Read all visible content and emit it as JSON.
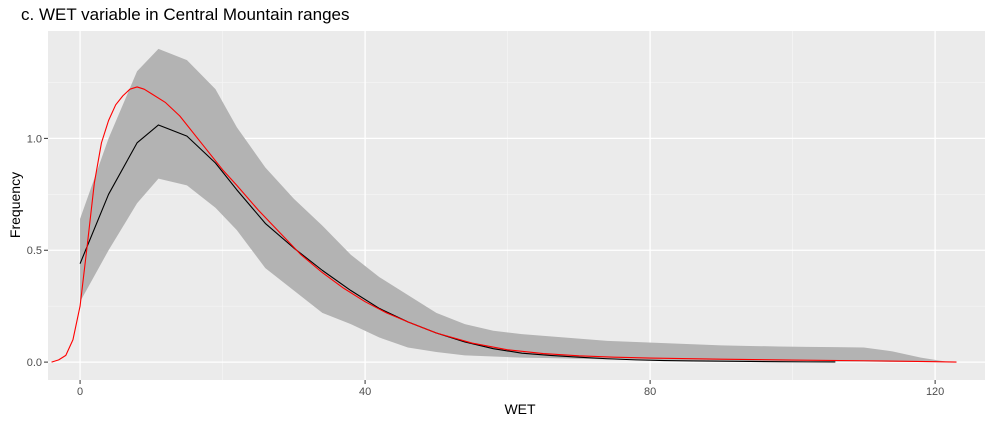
{
  "chart_data": {
    "type": "line",
    "title": "c. WET variable in Central Mountain ranges",
    "xlabel": "WET",
    "ylabel": "Frequency",
    "xlim": [
      -4.5,
      127
    ],
    "ylim": [
      -0.08,
      1.48
    ],
    "x_ticks": [
      0,
      40,
      80,
      120
    ],
    "x_tick_labels": [
      "0",
      "40",
      "80",
      "120"
    ],
    "y_ticks": [
      0.0,
      0.5,
      1.0
    ],
    "y_tick_labels": [
      "0.0",
      "0.5",
      "1.0"
    ],
    "x_minor": [
      20,
      60,
      100
    ],
    "y_minor": [
      0.25,
      0.75,
      1.25
    ],
    "grid": true,
    "background": "#ebebeb",
    "band": {
      "color": "#b3b3b3",
      "x": [
        0,
        4,
        8,
        11,
        15,
        19,
        22,
        26,
        30,
        34,
        38,
        42,
        46,
        50,
        54,
        58,
        62,
        66,
        70,
        74,
        78,
        82,
        86,
        90,
        94,
        98,
        102,
        106,
        110,
        114,
        118,
        122
      ],
      "upper": [
        0.64,
        1.0,
        1.3,
        1.4,
        1.35,
        1.22,
        1.05,
        0.87,
        0.73,
        0.61,
        0.48,
        0.38,
        0.3,
        0.22,
        0.17,
        0.14,
        0.125,
        0.115,
        0.105,
        0.095,
        0.09,
        0.085,
        0.08,
        0.075,
        0.072,
        0.07,
        0.068,
        0.067,
        0.065,
        0.048,
        0.02,
        0.0
      ],
      "lower": [
        0.27,
        0.5,
        0.71,
        0.82,
        0.79,
        0.69,
        0.59,
        0.42,
        0.32,
        0.22,
        0.17,
        0.11,
        0.065,
        0.045,
        0.03,
        0.025,
        0.02,
        0.018,
        0.015,
        0.012,
        0.01,
        0.008,
        0.007,
        0.006,
        0.005,
        0.004,
        0.003,
        0.002,
        0.002,
        0.001,
        0.0005,
        0.0
      ]
    },
    "series": [
      {
        "color": "#000000",
        "x": [
          0,
          4,
          8,
          11,
          15,
          19,
          22,
          26,
          30,
          34,
          38,
          42,
          46,
          50,
          54,
          58,
          62,
          66,
          70,
          74,
          78,
          82,
          86,
          90,
          94,
          98,
          102,
          106
        ],
        "values": [
          0.44,
          0.75,
          0.98,
          1.06,
          1.01,
          0.89,
          0.77,
          0.62,
          0.51,
          0.41,
          0.32,
          0.24,
          0.18,
          0.13,
          0.09,
          0.06,
          0.04,
          0.03,
          0.022,
          0.015,
          0.01,
          0.007,
          0.005,
          0.004,
          0.003,
          0.002,
          0.001,
          0.0008
        ]
      },
      {
        "color": "#ff0000",
        "x": [
          -4,
          -3,
          -2,
          -1,
          0,
          1,
          2,
          3,
          4,
          5,
          6,
          7,
          8,
          9,
          10,
          12,
          14,
          16,
          18,
          20,
          22,
          25,
          28,
          31,
          34,
          37,
          40,
          43,
          46,
          50,
          55,
          60,
          65,
          70,
          75,
          80,
          90,
          100,
          110,
          115,
          120,
          123
        ],
        "values": [
          0.0,
          0.01,
          0.03,
          0.1,
          0.25,
          0.52,
          0.8,
          0.98,
          1.08,
          1.15,
          1.19,
          1.22,
          1.23,
          1.22,
          1.2,
          1.16,
          1.1,
          1.02,
          0.94,
          0.86,
          0.79,
          0.68,
          0.58,
          0.48,
          0.4,
          0.33,
          0.27,
          0.22,
          0.18,
          0.13,
          0.085,
          0.055,
          0.038,
          0.028,
          0.022,
          0.018,
          0.013,
          0.009,
          0.006,
          0.004,
          0.002,
          0.0
        ]
      }
    ]
  }
}
